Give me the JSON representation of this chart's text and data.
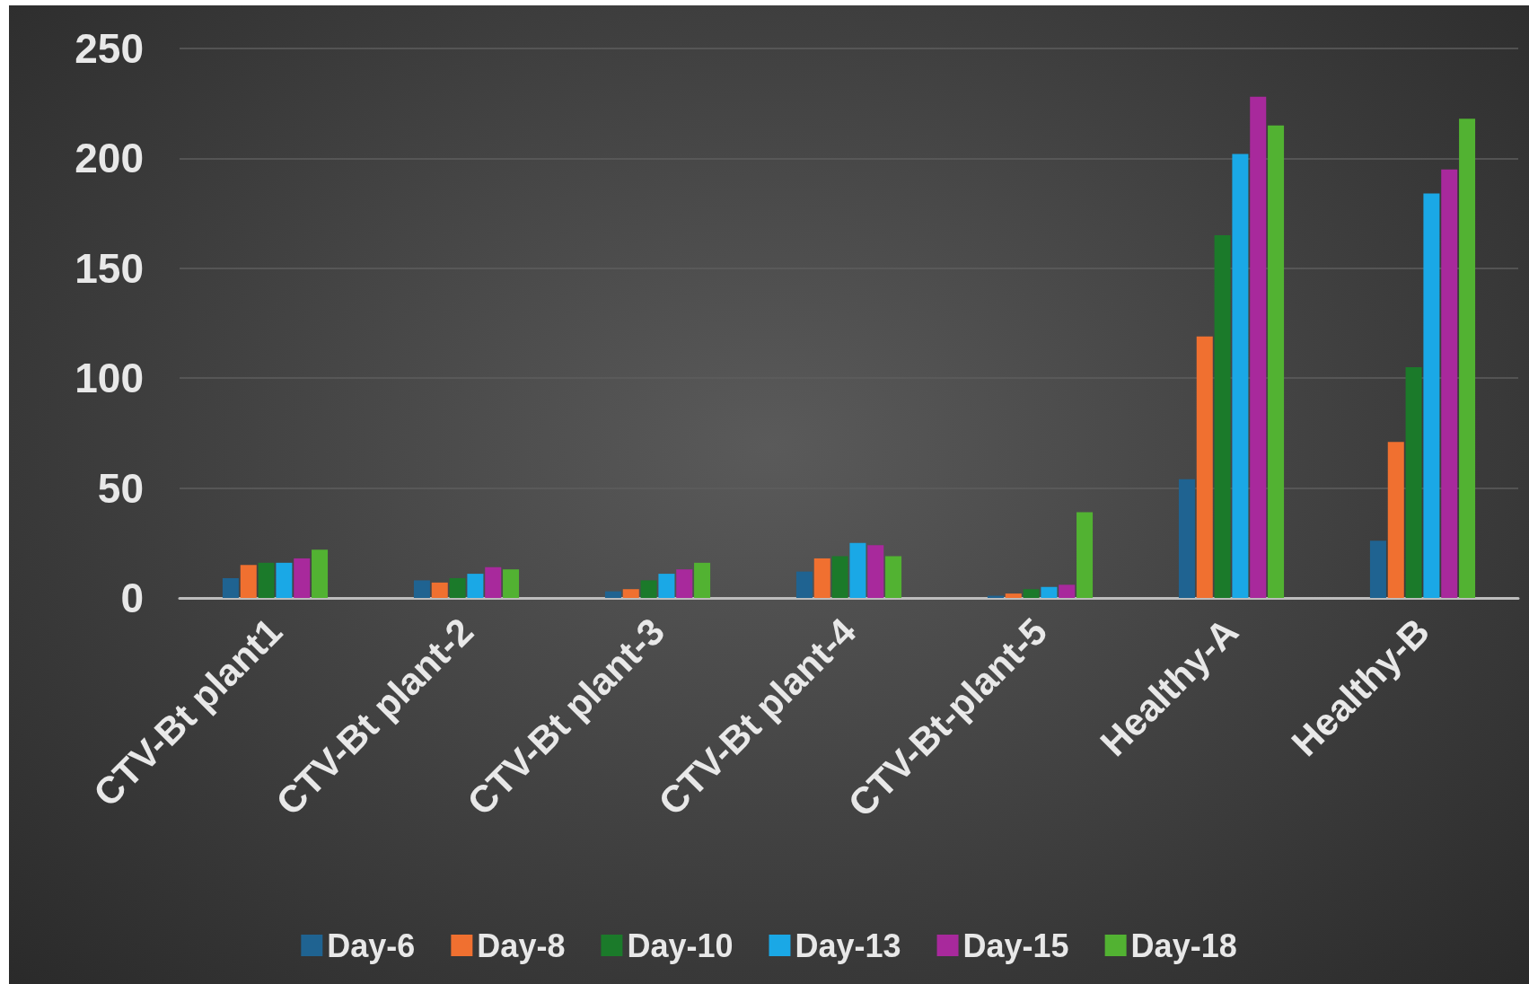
{
  "chart_data": {
    "type": "bar",
    "categories": [
      "CTV-Bt plant1",
      "CTV-Bt plant-2",
      "CTV-Bt plant-3",
      "CTV-Bt plant-4",
      "CTV-Bt-plant-5",
      "Healthy-A",
      "Healthy-B"
    ],
    "series": [
      {
        "name": "Day-6",
        "color": "#1f6391",
        "values": [
          9,
          8,
          3,
          12,
          1,
          54,
          26
        ]
      },
      {
        "name": "Day-8",
        "color": "#f07030",
        "values": [
          15,
          7,
          4,
          18,
          2,
          119,
          71
        ]
      },
      {
        "name": "Day-10",
        "color": "#1b7a2a",
        "values": [
          16,
          9,
          8,
          19,
          4,
          165,
          105
        ]
      },
      {
        "name": "Day-13",
        "color": "#1aa8e6",
        "values": [
          16,
          11,
          11,
          25,
          5,
          202,
          184
        ]
      },
      {
        "name": "Day-15",
        "color": "#a8299c",
        "values": [
          18,
          14,
          13,
          24,
          6,
          228,
          195
        ]
      },
      {
        "name": "Day-18",
        "color": "#52b232",
        "values": [
          22,
          13,
          16,
          19,
          39,
          215,
          218
        ]
      }
    ],
    "ylim": [
      0,
      250
    ],
    "yticks": [
      0,
      50,
      100,
      150,
      200,
      250
    ],
    "grid": "y",
    "legend": "bottom"
  }
}
